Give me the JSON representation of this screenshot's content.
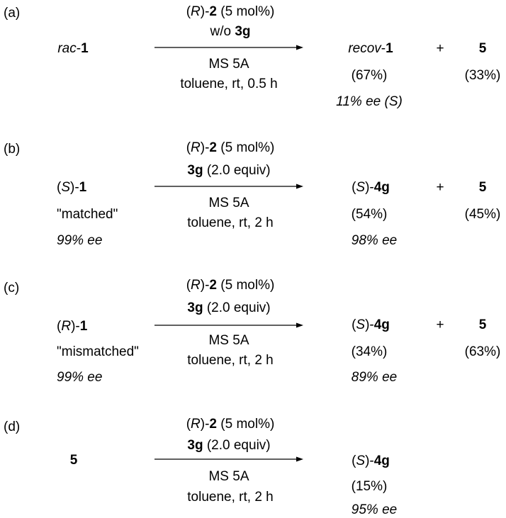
{
  "schemes": [
    {
      "tag": "(a)",
      "reactant": {
        "prefix": "",
        "prefix_italic": "rac",
        "mid": "-",
        "bold": "1",
        "suffix": ""
      },
      "reactant_note": "",
      "reactant_ee": "",
      "reagents_above": [
        {
          "pre": "(",
          "it": "R",
          "mid": ")-",
          "bold": "2",
          "post": " (5 mol%)"
        },
        {
          "pre": "w/o ",
          "it": "",
          "mid": "",
          "bold": "3g",
          "post": ""
        }
      ],
      "reagents_below": [
        "MS 5A",
        "toluene, rt, 0.5 h"
      ],
      "product": {
        "pre": "",
        "it": "recov",
        "mid": "-",
        "bold": "1"
      },
      "product_yield": "(67%)",
      "product_ee": "11% ee (S)",
      "plus": "+",
      "byproduct": "5",
      "byproduct_yield": "(33%)"
    },
    {
      "tag": "(b)",
      "reactant": {
        "prefix": "(",
        "prefix_italic": "S",
        "mid": ")-",
        "bold": "1",
        "suffix": ""
      },
      "reactant_note": "\"matched\"",
      "reactant_ee": "99% ee",
      "reagents_above": [
        {
          "pre": "(",
          "it": "R",
          "mid": ")-",
          "bold": "2",
          "post": " (5 mol%)"
        },
        {
          "pre": "",
          "it": "",
          "mid": "",
          "bold": "3g",
          "post": " (2.0 equiv)"
        }
      ],
      "reagents_below": [
        "MS 5A",
        "toluene, rt, 2 h"
      ],
      "product": {
        "pre": "(",
        "it": "S",
        "mid": ")-",
        "bold": "4g"
      },
      "product_yield": "(54%)",
      "product_ee": "98% ee",
      "plus": "+",
      "byproduct": "5",
      "byproduct_yield": "(45%)"
    },
    {
      "tag": "(c)",
      "reactant": {
        "prefix": "(",
        "prefix_italic": "R",
        "mid": ")-",
        "bold": "1",
        "suffix": ""
      },
      "reactant_note": "\"mismatched\"",
      "reactant_ee": "99% ee",
      "reagents_above": [
        {
          "pre": "(",
          "it": "R",
          "mid": ")-",
          "bold": "2",
          "post": " (5 mol%)"
        },
        {
          "pre": "",
          "it": "",
          "mid": "",
          "bold": "3g",
          "post": " (2.0 equiv)"
        }
      ],
      "reagents_below": [
        "MS 5A",
        "toluene, rt, 2 h"
      ],
      "product": {
        "pre": "(",
        "it": "S",
        "mid": ")-",
        "bold": "4g"
      },
      "product_yield": "(34%)",
      "product_ee": "89% ee",
      "plus": "+",
      "byproduct": "5",
      "byproduct_yield": "(63%)"
    },
    {
      "tag": "(d)",
      "reactant": {
        "prefix": "",
        "prefix_italic": "",
        "mid": "",
        "bold": "5",
        "suffix": ""
      },
      "reactant_note": "",
      "reactant_ee": "",
      "reagents_above": [
        {
          "pre": "(",
          "it": "R",
          "mid": ")-",
          "bold": "2",
          "post": " (5 mol%)"
        },
        {
          "pre": "",
          "it": "",
          "mid": "",
          "bold": "3g",
          "post": " (2.0 equiv)"
        }
      ],
      "reagents_below": [
        "MS 5A",
        "toluene, rt, 2 h"
      ],
      "product": {
        "pre": "(",
        "it": "S",
        "mid": ")-",
        "bold": "4g"
      },
      "product_yield": "(15%)",
      "product_ee": "95% ee",
      "plus": "",
      "byproduct": "",
      "byproduct_yield": ""
    }
  ]
}
